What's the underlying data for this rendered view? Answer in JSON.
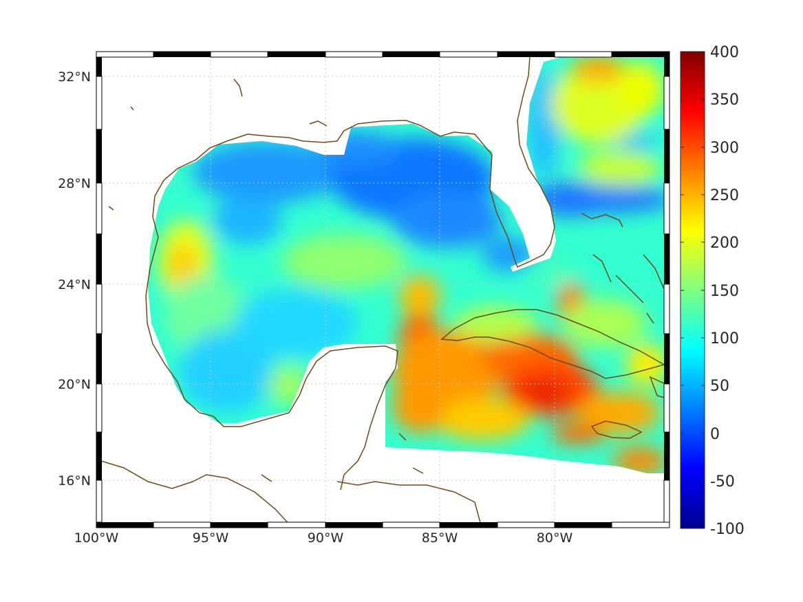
{
  "map": {
    "region": "Gulf of Mexico and northwestern Caribbean",
    "projection": "mercator",
    "lon_range": [
      -100,
      -75
    ],
    "lat_range": [
      14.3,
      32.9
    ],
    "graticule": "dotted",
    "frame": "black-white alternating (fancy box)",
    "coastline_color": "#6b4a14",
    "lon_ticks": [
      {
        "value": -100,
        "label": "100°W"
      },
      {
        "value": -95,
        "label": "95°W"
      },
      {
        "value": -90,
        "label": "90°W"
      },
      {
        "value": -85,
        "label": "85°W"
      },
      {
        "value": -80,
        "label": "80°W"
      }
    ],
    "lat_ticks": [
      {
        "value": 32,
        "label": "32°N"
      },
      {
        "value": 28,
        "label": "28°N"
      },
      {
        "value": 24,
        "label": "24°N"
      },
      {
        "value": 20,
        "label": "20°N"
      },
      {
        "value": 16,
        "label": "16°N"
      }
    ]
  },
  "colorbar": {
    "colormap": "jet",
    "range": [
      -100,
      400
    ],
    "placement": "right",
    "tick_labels": [
      "400",
      "350",
      "300",
      "250",
      "200",
      "150",
      "100",
      "50",
      "0",
      "-50",
      "-100"
    ],
    "tick_values": [
      400,
      350,
      300,
      250,
      200,
      150,
      100,
      50,
      0,
      -50,
      -100
    ]
  },
  "field_features": [
    {
      "region": "northern Gulf shelf",
      "level": 50
    },
    {
      "region": "eastern Gulf interior",
      "level": 40
    },
    {
      "region": "western Gulf",
      "level": 150
    },
    {
      "region": "Yucatan Channel / NW Caribbean",
      "level": 300
    },
    {
      "region": "south of Cuba",
      "level": 320
    },
    {
      "region": "Florida Straits",
      "level": 40
    },
    {
      "region": "Atlantic off Georgia",
      "level": 210
    }
  ]
}
